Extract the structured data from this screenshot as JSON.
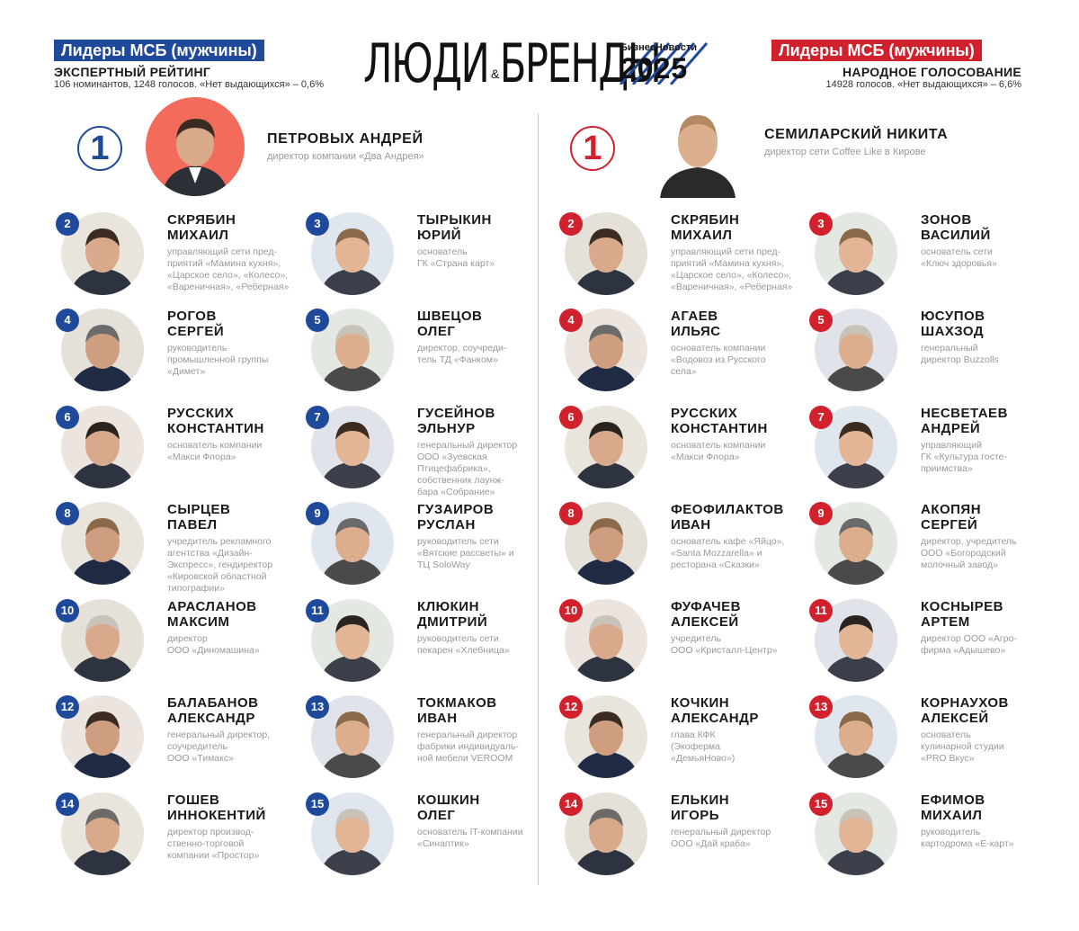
{
  "colors": {
    "blue": "#1f4a9c",
    "red": "#d0212d",
    "role_gray": "#999999",
    "avatar_bg": "#e6e6e6",
    "winner_left_bg": "#f26b5b"
  },
  "left_header": {
    "label": "Лидеры МСБ (мужчины)",
    "subtitle": "ЭКСПЕРТНЫЙ РЕЙТИНГ",
    "note": "106 номинантов, 1248 голосов. «Нет выдающихся» – 0,6%"
  },
  "right_header": {
    "label": "Лидеры МСБ (мужчины)",
    "subtitle": "НАРОДНОЕ ГОЛОСОВАНИЕ",
    "note": "14928 голосов. «Нет выдающихся» – 6,6%"
  },
  "logo": {
    "main": "ЛЮДИ БРЕНДЫ",
    "amp": "&",
    "brand": "БизнесНовости",
    "year": "2025"
  },
  "left_winner": {
    "rank": "1",
    "name": "ПЕТРОВЫХ АНДРЕЙ",
    "role": "директор компании «Два Андрея»"
  },
  "right_winner": {
    "rank": "1",
    "name": "СЕМИЛАРСКИЙ НИКИТА",
    "role": "директор сети Coffee Like в Кирове"
  },
  "left_entries": [
    {
      "rank": "2",
      "surname": "СКРЯБИН",
      "given": "МИХАИЛ",
      "role": [
        "управляющий сети пред-",
        "приятий «Мамина кухня»,",
        "«Царское село», «Колесо»,",
        "«Вареничная», «Реберная»"
      ]
    },
    {
      "rank": "3",
      "surname": "ТЫРЫКИН",
      "given": "ЮРИЙ",
      "role": [
        "основатель",
        "ГК «Страна карт»"
      ]
    },
    {
      "rank": "4",
      "surname": "РОГОВ",
      "given": "СЕРГЕЙ",
      "role": [
        "руководитель",
        "промышленной группы",
        "«Димет»"
      ]
    },
    {
      "rank": "5",
      "surname": "ШВЕЦОВ",
      "given": "ОЛЕГ",
      "role": [
        "директор, соучреди-",
        "тель ТД «Фанком»"
      ]
    },
    {
      "rank": "6",
      "surname": "РУССКИХ",
      "given": "КОНСТАНТИН",
      "role": [
        "основатель компании",
        "«Макси Флора»"
      ]
    },
    {
      "rank": "7",
      "surname": "ГУСЕЙНОВ",
      "given": "ЭЛЬНУР",
      "role": [
        "генеральный директор",
        "ООО «Зуевская",
        "Птицефабрика»,",
        "собственник лаунж-",
        "бара «Собрание»"
      ]
    },
    {
      "rank": "8",
      "surname": "СЫРЦЕВ",
      "given": "ПАВЕЛ",
      "role": [
        "учредитель рекламного",
        "агентства «Дизайн-",
        "Экспресс», гендиректор",
        "«Кировской областной",
        "типографии»"
      ]
    },
    {
      "rank": "9",
      "surname": "ГУЗАИРОВ",
      "given": "РУСЛАН",
      "role": [
        "руководитель сети",
        "«Вятские рассветы» и",
        "ТЦ SoloWay"
      ]
    },
    {
      "rank": "10",
      "surname": "АРАСЛАНОВ",
      "given": "МАКСИМ",
      "role": [
        "директор",
        "ООО «Диномашина»"
      ]
    },
    {
      "rank": "11",
      "surname": "КЛЮКИН",
      "given": "ДМИТРИЙ",
      "role": [
        "руководитель сети",
        "пекарен «Хлебница»"
      ]
    },
    {
      "rank": "12",
      "surname": "БАЛАБАНОВ",
      "given": "АЛЕКСАНДР",
      "role": [
        "генеральный директор,",
        "соучредитель",
        "ООО «Тимакс»"
      ]
    },
    {
      "rank": "13",
      "surname": "ТОКМАКОВ",
      "given": "ИВАН",
      "role": [
        "генеральный директор",
        "фабрики индивидуаль-",
        "ной мебели VEROOM"
      ]
    },
    {
      "rank": "14",
      "surname": "ГОШЕВ",
      "given": "ИННОКЕНТИЙ",
      "role": [
        "директор производ-",
        "ственно-торговой",
        "компании «Простор»"
      ]
    },
    {
      "rank": "15",
      "surname": "КОШКИН",
      "given": "ОЛЕГ",
      "role": [
        "основатель IT-компании",
        "«Синаптик»"
      ]
    }
  ],
  "right_entries": [
    {
      "rank": "2",
      "surname": "СКРЯБИН",
      "given": "МИХАИЛ",
      "role": [
        "управляющий сети пред-",
        "приятий «Мамина кухня»,",
        "«Царское село», «Колесо»,",
        "«Вареничная», «Реберная»"
      ]
    },
    {
      "rank": "3",
      "surname": "ЗОНОВ",
      "given": "ВАСИЛИЙ",
      "role": [
        "основатель сети",
        "«Ключ здоровья»"
      ]
    },
    {
      "rank": "4",
      "surname": "АГАЕВ",
      "given": "ИЛЬЯС",
      "role": [
        "основатель компании",
        "«Водовоз из Русского",
        "села»"
      ]
    },
    {
      "rank": "5",
      "surname": "ЮСУПОВ",
      "given": "ШАХЗОД",
      "role": [
        "генеральный",
        "директор Buzzolls"
      ]
    },
    {
      "rank": "6",
      "surname": "РУССКИХ",
      "given": "КОНСТАНТИН",
      "role": [
        "основатель компании",
        "«Макси Флора»"
      ]
    },
    {
      "rank": "7",
      "surname": "НЕСВЕТАЕВ",
      "given": "АНДРЕЙ",
      "role": [
        "управляющий",
        "ГК «Культура госте-",
        "приимства»"
      ]
    },
    {
      "rank": "8",
      "surname": "ФЕОФИЛАКТОВ",
      "given": "ИВАН",
      "role": [
        "основатель кафе «Яйцо»,",
        "«Santa Mozzarella» и",
        "ресторана «Сказки»"
      ]
    },
    {
      "rank": "9",
      "surname": "АКОПЯН",
      "given": "СЕРГЕЙ",
      "role": [
        "директор, учредитель",
        "ООО «Богородский",
        "молочный завод»"
      ]
    },
    {
      "rank": "10",
      "surname": "ФУФАЧЕВ",
      "given": "АЛЕКСЕЙ",
      "role": [
        "учредитель",
        "ООО «Кристалл-Центр»"
      ]
    },
    {
      "rank": "11",
      "surname": "КОСНЫРЕВ",
      "given": "АРТЕМ",
      "role": [
        "директор ООО «Агро-",
        "фирма «Адышево»"
      ]
    },
    {
      "rank": "12",
      "surname": "КОЧКИН",
      "given": "АЛЕКСАНДР",
      "role": [
        "глава КФК",
        "(Экоферма",
        "«ДемьяНово»)"
      ]
    },
    {
      "rank": "13",
      "surname": "КОРНАУХОВ",
      "given": "АЛЕКСЕЙ",
      "role": [
        "основатель",
        "кулинарной студии",
        "«PRO Вкус»"
      ]
    },
    {
      "rank": "14",
      "surname": "ЕЛЬКИН",
      "given": "ИГОРЬ",
      "role": [
        "генеральный директор",
        "ООО «Дай краба»"
      ]
    },
    {
      "rank": "15",
      "surname": "ЕФИМОВ",
      "given": "МИХАИЛ",
      "role": [
        "руководитель",
        "картодрома «E-карт»"
      ]
    }
  ]
}
